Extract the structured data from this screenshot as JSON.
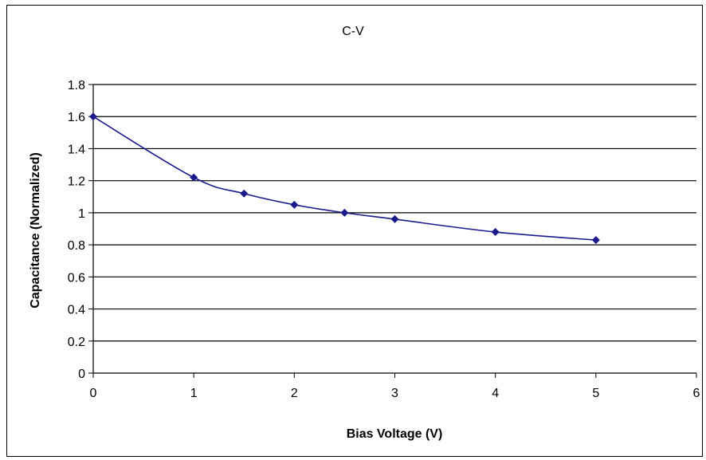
{
  "chart_data": {
    "type": "scatter",
    "title": "C-V",
    "xlabel": "Bias Voltage (V)",
    "ylabel": "Capacitance (Normalized)",
    "xlim": [
      0,
      6
    ],
    "ylim": [
      0,
      1.8
    ],
    "xticks": [
      0,
      1,
      2,
      3,
      4,
      5,
      6
    ],
    "yticks": [
      0,
      0.2,
      0.4,
      0.6,
      0.8,
      1,
      1.2,
      1.4,
      1.6,
      1.8
    ],
    "ytick_labels": [
      "0",
      "0.2",
      "0.4",
      "0.6",
      "0.8",
      "1",
      "1.2",
      "1.4",
      "1.6",
      "1.8"
    ],
    "grid": "horizontal",
    "series": [
      {
        "x": [
          0,
          1,
          1.5,
          2,
          2.5,
          3,
          4,
          5
        ],
        "y": [
          1.6,
          1.22,
          1.12,
          1.05,
          1.0,
          0.96,
          0.88,
          0.83
        ],
        "color": "#1a1a8c",
        "marker": "diamond",
        "line": "smooth"
      }
    ]
  }
}
